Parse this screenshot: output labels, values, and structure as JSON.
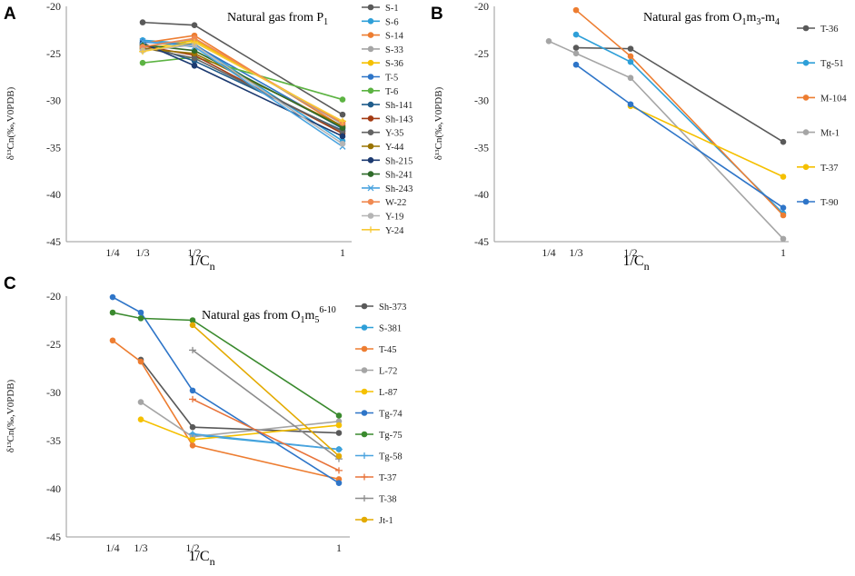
{
  "chart_data": [
    {
      "panel": "A",
      "type": "line",
      "title": "Natural gas from P",
      "title_sub": "1",
      "title_after": "",
      "xlabel": "1/C",
      "xlabel_sub": "n",
      "ylabel": "δ¹³Cn(‰,V0PDB)",
      "ylim": [
        -45,
        -20
      ],
      "yticks": [
        -20,
        -25,
        -30,
        -35,
        -40,
        -45
      ],
      "xticks": [
        {
          "v": 0.25,
          "label": "1/4"
        },
        {
          "v": 0.3333,
          "label": "1/3"
        },
        {
          "v": 0.5,
          "label": "1/2"
        },
        {
          "v": 1,
          "label": "1"
        }
      ],
      "x": [
        0.3333,
        0.5,
        1
      ],
      "series": [
        {
          "name": "S-1",
          "color": "#595959",
          "marker": "circle",
          "values": [
            -21.7,
            -22.0,
            -31.5
          ]
        },
        {
          "name": "S-6",
          "color": "#2e9fd8",
          "marker": "circle",
          "values": [
            -23.6,
            -24.0,
            -34.3
          ]
        },
        {
          "name": "S-14",
          "color": "#ed7d31",
          "marker": "circle",
          "values": [
            -23.9,
            -23.1,
            -32.8
          ]
        },
        {
          "name": "S-33",
          "color": "#a5a5a5",
          "marker": "circle",
          "values": [
            -24.3,
            -23.5,
            -32.5
          ]
        },
        {
          "name": "S-36",
          "color": "#f5c000",
          "marker": "circle",
          "values": [
            -24.6,
            -23.6,
            -32.3
          ]
        },
        {
          "name": "T-5",
          "color": "#2e75c8",
          "marker": "circle",
          "values": [
            -23.8,
            -24.1,
            -33.0
          ]
        },
        {
          "name": "T-6",
          "color": "#5cb342",
          "marker": "circle",
          "values": [
            -26.0,
            -25.4,
            -29.9
          ]
        },
        {
          "name": "Sh-141",
          "color": "#1f5c8b",
          "marker": "circle",
          "values": [
            -24.0,
            -25.8,
            -33.2
          ]
        },
        {
          "name": "Sh-143",
          "color": "#a33a12",
          "marker": "circle",
          "values": [
            -24.2,
            -25.2,
            -33.5
          ]
        },
        {
          "name": "Y-35",
          "color": "#636363",
          "marker": "circle",
          "values": [
            -24.4,
            -25.5,
            -33.3
          ]
        },
        {
          "name": "Y-44",
          "color": "#997300",
          "marker": "circle",
          "values": [
            -24.5,
            -25.0,
            -32.7
          ]
        },
        {
          "name": "Sh-215",
          "color": "#1c3a70",
          "marker": "circle",
          "values": [
            -23.9,
            -26.3,
            -33.8
          ]
        },
        {
          "name": "Sh-241",
          "color": "#2f6b2a",
          "marker": "circle",
          "values": [
            -24.1,
            -24.7,
            -32.9
          ]
        },
        {
          "name": "Sh-243",
          "color": "#4aa3df",
          "marker": "x",
          "values": [
            -23.7,
            -24.3,
            -34.9
          ]
        },
        {
          "name": "W-22",
          "color": "#f08a52",
          "marker": "circle",
          "values": [
            -24.3,
            -23.4,
            -32.4
          ]
        },
        {
          "name": "Y-19",
          "color": "#b5b5b5",
          "marker": "circle",
          "values": [
            -24.7,
            -24.1,
            -34.6
          ]
        },
        {
          "name": "Y-24",
          "color": "#f7c936",
          "marker": "plus",
          "values": [
            -24.8,
            -23.8,
            -32.2
          ]
        }
      ]
    },
    {
      "panel": "B",
      "type": "line",
      "title": "Natural gas from O",
      "title_sub": "1",
      "title_after": "m",
      "title_sub2": "3",
      "title_tail": "-m",
      "title_sub3": "4",
      "xlabel": "1/C",
      "xlabel_sub": "n",
      "ylabel": "δ¹³Cn(‰,V0PDB)",
      "ylim": [
        -45,
        -20
      ],
      "yticks": [
        -20,
        -25,
        -30,
        -35,
        -40,
        -45
      ],
      "xticks": [
        {
          "v": 0.25,
          "label": "1/4"
        },
        {
          "v": 0.3333,
          "label": "1/3"
        },
        {
          "v": 0.5,
          "label": "1/2"
        },
        {
          "v": 1,
          "label": "1"
        }
      ],
      "series": [
        {
          "name": "T-36",
          "color": "#595959",
          "marker": "circle",
          "x": [
            0.3333,
            0.5,
            1
          ],
          "values": [
            -24.4,
            -24.5,
            -34.4
          ]
        },
        {
          "name": "Tg-51",
          "color": "#2e9fd8",
          "marker": "circle",
          "x": [
            0.3333,
            0.5,
            1
          ],
          "values": [
            -23.0,
            -25.9,
            -42.0
          ]
        },
        {
          "name": "M-104",
          "color": "#ed7d31",
          "marker": "circle",
          "x": [
            0.3333,
            0.5,
            1
          ],
          "values": [
            -20.4,
            -25.3,
            -42.2
          ]
        },
        {
          "name": "Mt-1",
          "color": "#a5a5a5",
          "marker": "circle",
          "x": [
            0.25,
            0.3333,
            0.5,
            1
          ],
          "values": [
            -23.7,
            -25.0,
            -27.6,
            -44.7
          ]
        },
        {
          "name": "T-37",
          "color": "#f5c000",
          "marker": "circle",
          "x": [
            0.5,
            1
          ],
          "values": [
            -30.6,
            -38.1
          ]
        },
        {
          "name": "T-90",
          "color": "#2e75c8",
          "marker": "circle",
          "x": [
            0.3333,
            0.5,
            1
          ],
          "values": [
            -26.2,
            -30.4,
            -41.4
          ]
        }
      ]
    },
    {
      "panel": "C",
      "type": "line",
      "title": "Natural gas from O",
      "title_sub": "1",
      "title_after": "m",
      "title_sub2": "5",
      "title_sup": "6-10",
      "xlabel": "1/C",
      "xlabel_sub": "n",
      "ylabel": "δ¹³Cn(‰,V0PDB)",
      "ylim": [
        -45,
        -20
      ],
      "yticks": [
        -20,
        -25,
        -30,
        -35,
        -40,
        -45
      ],
      "xticks": [
        {
          "v": 0.25,
          "label": "1/4"
        },
        {
          "v": 0.3333,
          "label": "1/3"
        },
        {
          "v": 0.5,
          "label": "1/2"
        },
        {
          "v": 1,
          "label": "1"
        }
      ],
      "series": [
        {
          "name": "Sh-373",
          "color": "#595959",
          "marker": "circle",
          "x": [
            0.3333,
            0.5,
            1
          ],
          "values": [
            -26.6,
            -33.6,
            -34.2
          ]
        },
        {
          "name": "S-381",
          "color": "#2e9fd8",
          "marker": "circle",
          "x": [
            0.5,
            1
          ],
          "values": [
            -34.4,
            -35.9
          ]
        },
        {
          "name": "T-45",
          "color": "#ed7d31",
          "marker": "circle",
          "x": [
            0.25,
            0.3333,
            0.5,
            1
          ],
          "values": [
            -24.6,
            -26.8,
            -35.5,
            -39.0
          ]
        },
        {
          "name": "L-72",
          "color": "#a5a5a5",
          "marker": "circle",
          "x": [
            0.3333,
            0.5,
            1
          ],
          "values": [
            -31.0,
            -34.6,
            -33.0
          ]
        },
        {
          "name": "L-87",
          "color": "#f5c000",
          "marker": "circle",
          "x": [
            0.3333,
            0.5,
            1
          ],
          "values": [
            -32.8,
            -34.9,
            -33.4
          ]
        },
        {
          "name": "Tg-74",
          "color": "#2e75c8",
          "marker": "circle",
          "x": [
            0.25,
            0.3333,
            0.5,
            1
          ],
          "values": [
            -20.1,
            -21.7,
            -29.8,
            -39.4
          ]
        },
        {
          "name": "Tg-75",
          "color": "#3a8a2e",
          "marker": "circle",
          "x": [
            0.25,
            0.3333,
            0.5,
            1
          ],
          "values": [
            -21.7,
            -22.3,
            -22.5,
            -32.4
          ]
        },
        {
          "name": "Tg-58",
          "color": "#4aa3df",
          "marker": "plus",
          "x": [
            0.5,
            1
          ],
          "values": [
            -34.3,
            -35.9
          ]
        },
        {
          "name": "T-37",
          "color": "#e8733a",
          "marker": "plus",
          "x": [
            0.5,
            1
          ],
          "values": [
            -30.7,
            -38.1
          ]
        },
        {
          "name": "T-38",
          "color": "#8c8c8c",
          "marker": "plus",
          "x": [
            0.5,
            1
          ],
          "values": [
            -25.6,
            -36.9
          ]
        },
        {
          "name": "Jt-1",
          "color": "#e3aa00",
          "marker": "circle",
          "x": [
            0.5,
            1
          ],
          "values": [
            -23.0,
            -36.6
          ]
        }
      ]
    }
  ]
}
